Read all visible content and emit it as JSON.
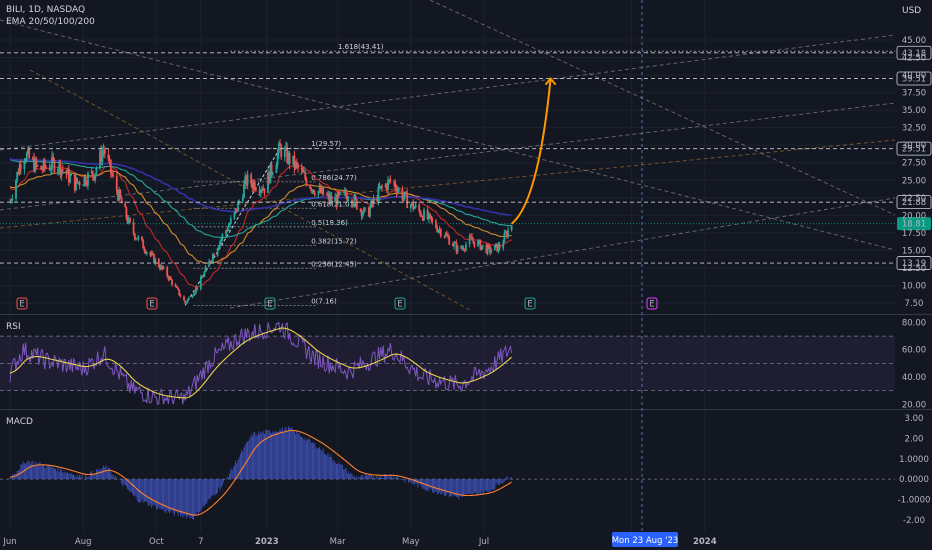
{
  "header": {
    "symbol_line": "BILI, 1D, NASDAQ",
    "indicator_line": "EMA 20/50/100/200",
    "currency": "USD"
  },
  "panes": {
    "rsi_label": "RSI",
    "macd_label": "MACD"
  },
  "colors": {
    "background": "#131722",
    "grid": "#1e222d",
    "up": "#26a69a",
    "down": "#ef5350",
    "ema20": "#c62828",
    "ema50": "#d58a2a",
    "ema100": "#26a69a",
    "ema200": "#3330a8",
    "rsi": "#7e57c2",
    "rsi_ma": "#e8d44d",
    "macd": "#ff7f2a",
    "histogram": "#3f51b5",
    "projection": "#ff9800",
    "accent": "#2962ff",
    "current_price_bg": "#089981"
  },
  "chart_data": [
    {
      "type": "candlestick",
      "pane": "price",
      "y_ticks": [
        "45.00",
        "42.50",
        "40.00",
        "37.50",
        "35.00",
        "32.50",
        "30.00",
        "27.50",
        "25.00",
        "22.50",
        "20.00",
        "17.50",
        "15.00",
        "12.50",
        "10.00",
        "7.50"
      ],
      "ylim": [
        6.5,
        47
      ],
      "x_ticks": [
        "Jun",
        "Aug",
        "Oct",
        "7",
        "2023",
        "Mar",
        "May",
        "Jul",
        "Nov",
        "2024"
      ],
      "price_labels": [
        "43.18",
        "39.51",
        "29.51",
        "21.88",
        "18.81",
        "13.19"
      ],
      "current_price": 18.81,
      "fibonacci": {
        "low": 7.16,
        "high": 29.57,
        "levels": [
          "1.618(43.41)",
          "1(29.57)",
          "0.786(24.77)",
          "0.618(21.01)",
          "0.5(18.36)",
          "0.382(15.72)",
          "0.236(12.45)",
          "0(7.16)"
        ]
      },
      "earnings_markers": [
        "E",
        "E",
        "E",
        "E",
        "E",
        "E"
      ],
      "anchors": [
        {
          "d": "2022-06-01",
          "p": 22
        },
        {
          "d": "2022-06-12",
          "p": 29
        },
        {
          "d": "2022-06-25",
          "p": 26.5
        },
        {
          "d": "2022-07-10",
          "p": 27.5
        },
        {
          "d": "2022-07-25",
          "p": 24.5
        },
        {
          "d": "2022-08-10",
          "p": 26
        },
        {
          "d": "2022-08-18",
          "p": 29.5
        },
        {
          "d": "2022-08-28",
          "p": 24
        },
        {
          "d": "2022-09-10",
          "p": 18
        },
        {
          "d": "2022-09-25",
          "p": 14.5
        },
        {
          "d": "2022-10-10",
          "p": 11.5
        },
        {
          "d": "2022-10-25",
          "p": 7.5
        },
        {
          "d": "2022-11-05",
          "p": 10
        },
        {
          "d": "2022-11-20",
          "p": 15.5
        },
        {
          "d": "2022-12-05",
          "p": 20
        },
        {
          "d": "2022-12-15",
          "p": 25
        },
        {
          "d": "2022-12-30",
          "p": 24
        },
        {
          "d": "2023-01-12",
          "p": 29.5
        },
        {
          "d": "2023-01-25",
          "p": 27
        },
        {
          "d": "2023-02-08",
          "p": 24
        },
        {
          "d": "2023-02-25",
          "p": 22
        },
        {
          "d": "2023-03-10",
          "p": 23
        },
        {
          "d": "2023-03-25",
          "p": 20
        },
        {
          "d": "2023-04-05",
          "p": 23.5
        },
        {
          "d": "2023-04-15",
          "p": 25
        },
        {
          "d": "2023-04-28",
          "p": 22
        },
        {
          "d": "2023-05-12",
          "p": 20
        },
        {
          "d": "2023-05-28",
          "p": 17.5
        },
        {
          "d": "2023-06-10",
          "p": 15
        },
        {
          "d": "2023-06-20",
          "p": 16.5
        },
        {
          "d": "2023-07-05",
          "p": 15
        },
        {
          "d": "2023-07-14",
          "p": 15.5
        },
        {
          "d": "2023-07-24",
          "p": 18.8
        }
      ],
      "projection": {
        "from": {
          "d": "2023-07-24",
          "p": 18.8
        },
        "to": {
          "d": "2023-08-23",
          "p": 39.5
        }
      }
    },
    {
      "type": "line",
      "pane": "rsi",
      "y_ticks": [
        "80.00",
        "60.00",
        "40.00",
        "20.00"
      ],
      "ylim": [
        18,
        84
      ],
      "anchors": [
        {
          "d": "2022-06-01",
          "v": 43
        },
        {
          "d": "2022-06-12",
          "v": 60
        },
        {
          "d": "2022-07-01",
          "v": 52
        },
        {
          "d": "2022-08-01",
          "v": 46
        },
        {
          "d": "2022-08-18",
          "v": 57
        },
        {
          "d": "2022-09-10",
          "v": 31
        },
        {
          "d": "2022-10-01",
          "v": 25
        },
        {
          "d": "2022-10-25",
          "v": 24
        },
        {
          "d": "2022-11-15",
          "v": 52
        },
        {
          "d": "2022-12-10",
          "v": 70
        },
        {
          "d": "2023-01-12",
          "v": 78
        },
        {
          "d": "2023-02-10",
          "v": 54
        },
        {
          "d": "2023-03-10",
          "v": 44
        },
        {
          "d": "2023-04-15",
          "v": 60
        },
        {
          "d": "2023-05-10",
          "v": 40
        },
        {
          "d": "2023-06-10",
          "v": 34
        },
        {
          "d": "2023-07-05",
          "v": 46
        },
        {
          "d": "2023-07-20",
          "v": 58
        },
        {
          "d": "2023-07-24",
          "v": 62
        }
      ]
    },
    {
      "type": "bar",
      "pane": "macd",
      "y_ticks": [
        "3.00",
        "2.00",
        "1.0000",
        "0.0000",
        "-1.0000",
        "-2.00"
      ],
      "ylim": [
        -2.5,
        3.3
      ],
      "anchors": [
        {
          "d": "2022-06-01",
          "v": 0.1
        },
        {
          "d": "2022-06-15",
          "v": 0.9
        },
        {
          "d": "2022-07-05",
          "v": 0.6
        },
        {
          "d": "2022-08-01",
          "v": 0.1
        },
        {
          "d": "2022-08-20",
          "v": 0.6
        },
        {
          "d": "2022-09-15",
          "v": -1.0
        },
        {
          "d": "2022-10-10",
          "v": -1.6
        },
        {
          "d": "2022-11-01",
          "v": -1.9
        },
        {
          "d": "2022-11-25",
          "v": -0.3
        },
        {
          "d": "2022-12-20",
          "v": 2.2
        },
        {
          "d": "2023-01-20",
          "v": 2.5
        },
        {
          "d": "2023-02-15",
          "v": 1.5
        },
        {
          "d": "2023-03-15",
          "v": 0.1
        },
        {
          "d": "2023-04-15",
          "v": 0.2
        },
        {
          "d": "2023-05-15",
          "v": -0.5
        },
        {
          "d": "2023-06-10",
          "v": -0.9
        },
        {
          "d": "2023-07-05",
          "v": -0.6
        },
        {
          "d": "2023-07-24",
          "v": 0.2
        }
      ]
    }
  ],
  "crosshair_date": "Mon 23 Aug '23"
}
